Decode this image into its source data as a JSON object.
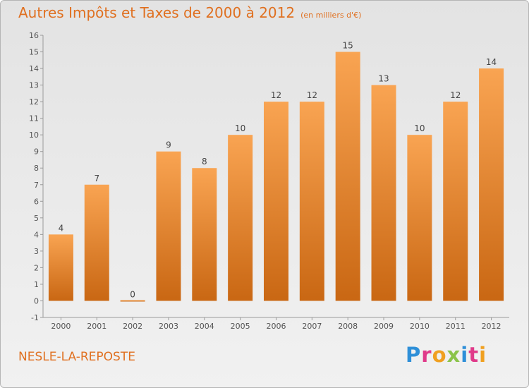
{
  "title": "Autres Impôts et Taxes de 2000 à 2012",
  "title_unit": "(en milliers d'€)",
  "commune": "NESLE-LA-REPOSTE",
  "brand": "Proxiti",
  "colors": {
    "accent": "#e07020",
    "bar_light": "#f9a452",
    "bar_dark": "#c96713"
  },
  "chart_data": {
    "type": "bar",
    "title": "Autres Impôts et Taxes de 2000 à 2012",
    "categories": [
      "2000",
      "2001",
      "2002",
      "2003",
      "2004",
      "2005",
      "2006",
      "2007",
      "2008",
      "2009",
      "2010",
      "2011",
      "2012"
    ],
    "values": [
      4,
      7,
      0,
      9,
      8,
      10,
      12,
      12,
      15,
      13,
      10,
      12,
      14
    ],
    "data_labels": [
      "4",
      "7",
      "0",
      "9",
      "8",
      "10",
      "12",
      "12",
      "15",
      "13",
      "10",
      "12",
      "14"
    ],
    "yticks": [
      "-1",
      "0",
      "1",
      "2",
      "3",
      "4",
      "5",
      "6",
      "7",
      "8",
      "9",
      "10",
      "11",
      "12",
      "13",
      "14",
      "15",
      "16"
    ],
    "ylim": [
      -1,
      16
    ],
    "grid": false,
    "xlabel": "",
    "ylabel": ""
  }
}
